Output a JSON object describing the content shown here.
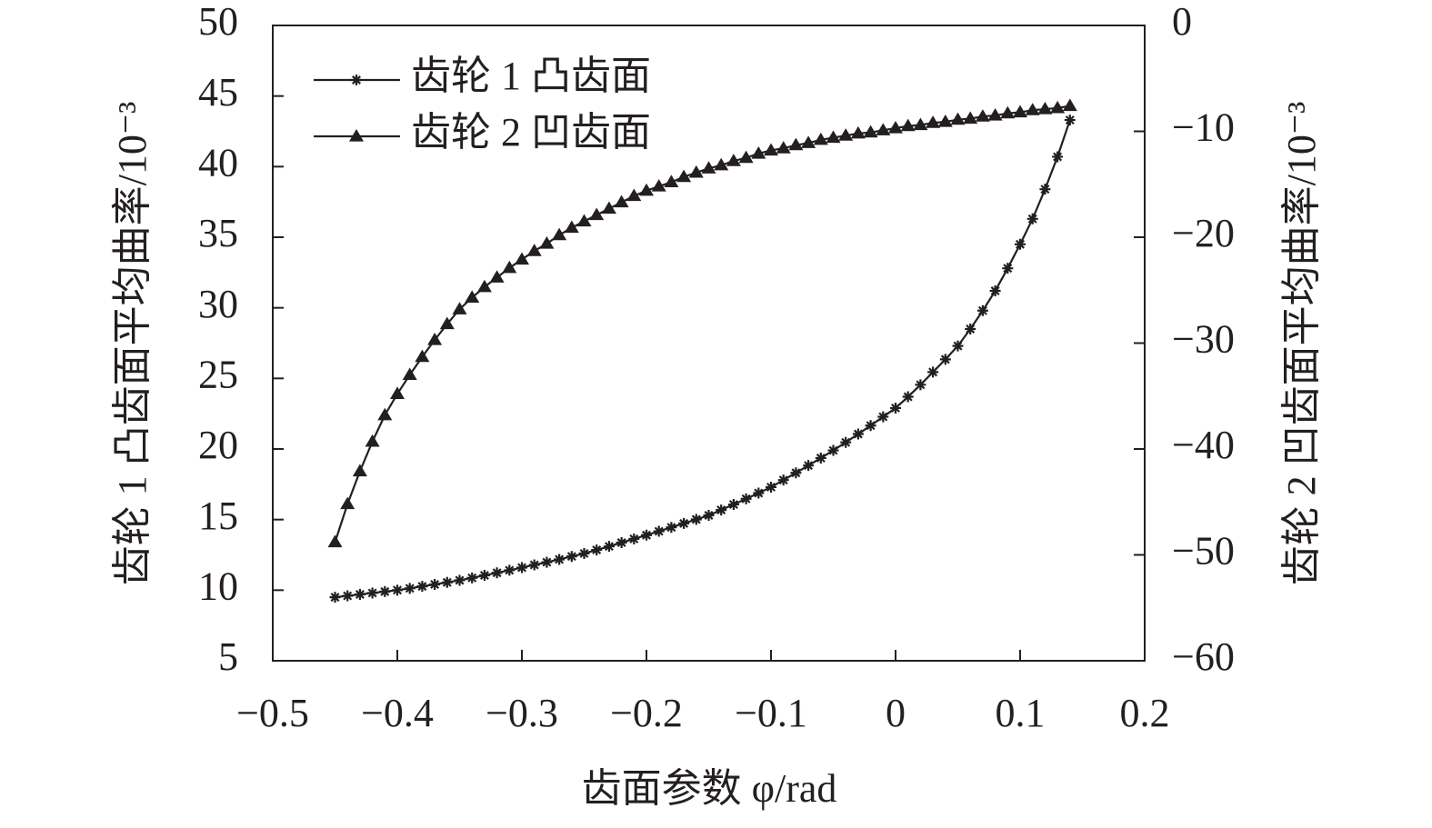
{
  "chart_data": {
    "type": "line",
    "xlabel": "齿面参数 φ/rad",
    "ylabel": "齿轮 1 凸齿面平均曲率/10⁻³",
    "y2label": "齿轮 2 凹齿面平均曲率/10⁻³",
    "x": [
      -0.45,
      -0.44,
      -0.43,
      -0.42,
      -0.41,
      -0.4,
      -0.39,
      -0.38,
      -0.37,
      -0.36,
      -0.35,
      -0.34,
      -0.33,
      -0.32,
      -0.31,
      -0.3,
      -0.29,
      -0.28,
      -0.27,
      -0.26,
      -0.25,
      -0.24,
      -0.23,
      -0.22,
      -0.21,
      -0.2,
      -0.19,
      -0.18,
      -0.17,
      -0.16,
      -0.15,
      -0.14,
      -0.13,
      -0.12,
      -0.11,
      -0.1,
      -0.09,
      -0.08,
      -0.07,
      -0.06,
      -0.05,
      -0.04,
      -0.03,
      -0.02,
      -0.01,
      0.0,
      0.01,
      0.02,
      0.03,
      0.04,
      0.05,
      0.06,
      0.07,
      0.08,
      0.09,
      0.1,
      0.11,
      0.12,
      0.13,
      0.14
    ],
    "series": [
      {
        "name": "齿轮 1 凸齿面",
        "color": "#231f20",
        "marker": "star",
        "axis": "y",
        "values": [
          9.5,
          9.6,
          9.7,
          9.8,
          9.9,
          10.0,
          10.13,
          10.27,
          10.41,
          10.55,
          10.7,
          10.87,
          11.05,
          11.23,
          11.41,
          11.6,
          11.79,
          11.98,
          12.18,
          12.39,
          12.6,
          12.85,
          13.1,
          13.37,
          13.63,
          13.9,
          14.17,
          14.45,
          14.73,
          15.01,
          15.3,
          15.68,
          16.07,
          16.47,
          16.88,
          17.3,
          17.8,
          18.31,
          18.83,
          19.36,
          19.9,
          20.47,
          21.06,
          21.66,
          22.28,
          22.9,
          23.7,
          24.55,
          25.45,
          26.35,
          27.3,
          28.5,
          29.8,
          31.2,
          32.8,
          34.5,
          36.3,
          38.4,
          40.7,
          43.3
        ]
      },
      {
        "name": "齿轮 2 凹齿面",
        "color": "#231f20",
        "marker": "triangle",
        "axis": "y2",
        "values": [
          -48.8,
          -45.2,
          -42.1,
          -39.3,
          -36.8,
          -34.8,
          -33.0,
          -31.3,
          -29.7,
          -28.2,
          -26.8,
          -25.7,
          -24.7,
          -23.8,
          -22.9,
          -22.1,
          -21.3,
          -20.6,
          -19.8,
          -19.1,
          -18.5,
          -17.9,
          -17.3,
          -16.7,
          -16.1,
          -15.6,
          -15.2,
          -14.8,
          -14.3,
          -13.9,
          -13.5,
          -13.2,
          -12.8,
          -12.5,
          -12.1,
          -11.8,
          -11.6,
          -11.3,
          -11.1,
          -10.8,
          -10.6,
          -10.4,
          -10.2,
          -10.1,
          -9.9,
          -9.7,
          -9.5,
          -9.4,
          -9.2,
          -9.1,
          -8.9,
          -8.8,
          -8.6,
          -8.5,
          -8.3,
          -8.2,
          -8.0,
          -7.9,
          -7.8,
          -7.6
        ]
      }
    ],
    "xlim": [
      -0.5,
      0.2
    ],
    "xticks": [
      {
        "value": -0.5,
        "label": "−0.5"
      },
      {
        "value": -0.4,
        "label": "−0.4"
      },
      {
        "value": -0.3,
        "label": "−0.3"
      },
      {
        "value": -0.2,
        "label": "−0.2"
      },
      {
        "value": -0.1,
        "label": "−0.1"
      },
      0,
      0.1,
      0.2
    ],
    "ylim": [
      5,
      50
    ],
    "yticks": [
      5,
      10,
      15,
      20,
      25,
      30,
      35,
      40,
      45,
      50
    ],
    "y2lim": [
      -60,
      0
    ],
    "y2ticks": [
      {
        "value": -60,
        "label": "−60"
      },
      {
        "value": -50,
        "label": "−50"
      },
      {
        "value": -40,
        "label": "−40"
      },
      {
        "value": -30,
        "label": "−30"
      },
      {
        "value": -20,
        "label": "−20"
      },
      {
        "value": -10,
        "label": "−10"
      },
      0
    ],
    "legend": "upper left",
    "grid": false
  }
}
